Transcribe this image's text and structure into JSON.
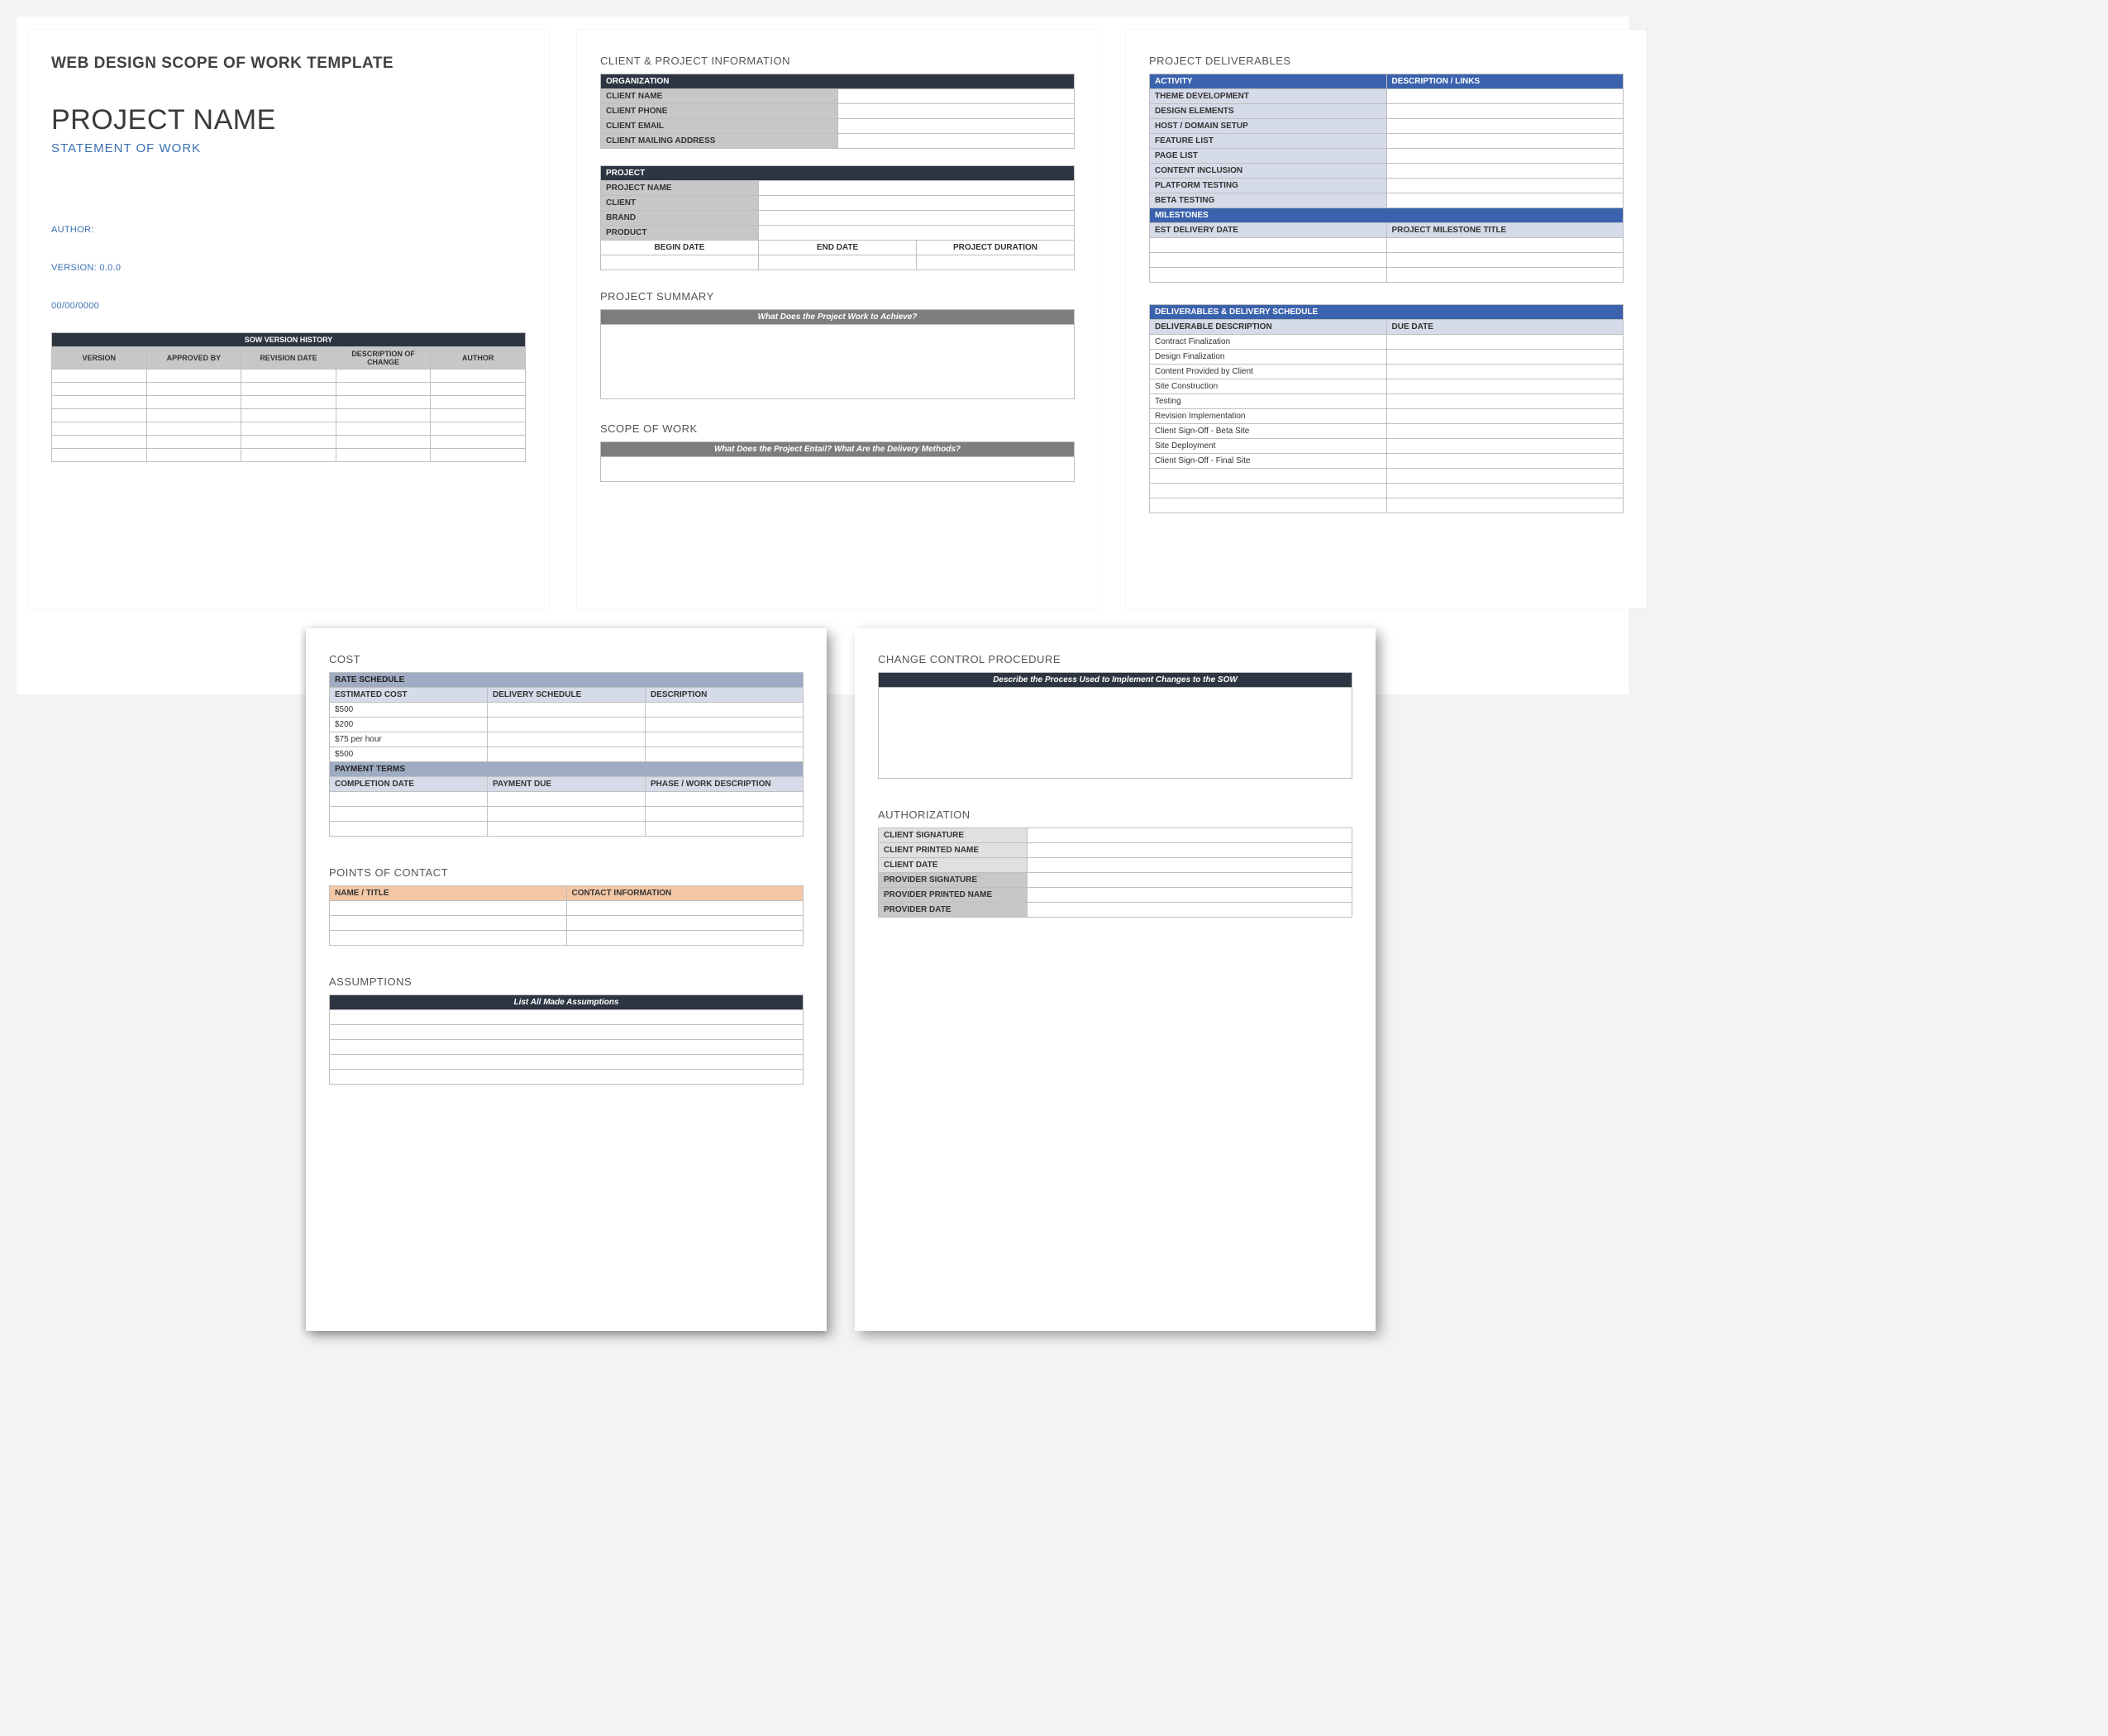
{
  "page1": {
    "templateTitle": "WEB DESIGN SCOPE OF WORK TEMPLATE",
    "projectName": "PROJECT NAME",
    "subtitle": "STATEMENT OF WORK",
    "authorLabel": "AUTHOR:",
    "versionLabel": "VERSION: 0.0.0",
    "dateLabel": "00/00/0000",
    "history": {
      "title": "SOW VERSION HISTORY",
      "columns": [
        "VERSION",
        "APPROVED BY",
        "REVISION DATE",
        "DESCRIPTION OF CHANGE",
        "AUTHOR"
      ],
      "rows": 7
    }
  },
  "page2": {
    "clientInfo": {
      "title": "CLIENT & PROJECT INFORMATION",
      "orgHeader": "ORGANIZATION",
      "rows": [
        "CLIENT NAME",
        "CLIENT  PHONE",
        "CLIENT EMAIL",
        "CLIENT MAILING ADDRESS"
      ]
    },
    "project": {
      "header": "PROJECT",
      "rows": [
        "PROJECT NAME",
        "CLIENT",
        "BRAND",
        "PRODUCT"
      ],
      "dateCols": [
        "BEGIN DATE",
        "END DATE",
        "PROJECT DURATION"
      ]
    },
    "summary": {
      "title": "PROJECT SUMMARY",
      "prompt": "What Does the Project Work to Achieve?"
    },
    "scope": {
      "title": "SCOPE OF WORK",
      "prompt": "What Does the Project Entail? What Are the Delivery Methods?"
    }
  },
  "page3": {
    "deliverables": {
      "title": "PROJECT DELIVERABLES",
      "header": [
        "ACTIVITY",
        "DESCRIPTION / LINKS"
      ],
      "rows": [
        "THEME DEVELOPMENT",
        "DESIGN ELEMENTS",
        "HOST / DOMAIN SETUP",
        "FEATURE LIST",
        "PAGE LIST",
        "CONTENT INCLUSION",
        "PLATFORM TESTING",
        "BETA TESTING"
      ]
    },
    "milestones": {
      "header": "MILESTONES",
      "cols": [
        "EST DELIVERY DATE",
        "PROJECT MILESTONE TITLE"
      ],
      "rows": 3
    },
    "schedule": {
      "header": "DELIVERABLES & DELIVERY SCHEDULE",
      "cols": [
        "DELIVERABLE DESCRIPTION",
        "DUE DATE"
      ],
      "rows": [
        "Contract Finalization",
        "Design Finalization",
        "Content Provided by Client",
        "Site Construction",
        "Testing",
        "Revision Implementation",
        "Client Sign-Off - Beta Site",
        "Site Deployment",
        "Client Sign-Off - Final Site"
      ],
      "blankRows": 3
    }
  },
  "page4": {
    "cost": {
      "title": "COST",
      "rateHeader": "RATE SCHEDULE",
      "rateCols": [
        "ESTIMATED COST",
        "DELIVERY SCHEDULE",
        "DESCRIPTION"
      ],
      "rateRows": [
        "$500",
        "$200",
        "$75 per hour",
        "$500"
      ],
      "payHeader": "PAYMENT TERMS",
      "payCols": [
        "COMPLETION DATE",
        "PAYMENT DUE",
        "PHASE / WORK DESCRIPTION"
      ],
      "payRows": 3
    },
    "contacts": {
      "title": "POINTS OF CONTACT",
      "cols": [
        "NAME / TITLE",
        "CONTACT INFORMATION"
      ],
      "rows": 3
    },
    "assumptions": {
      "title": "ASSUMPTIONS",
      "prompt": "List All Made Assumptions",
      "rows": 5
    }
  },
  "page5": {
    "change": {
      "title": "CHANGE CONTROL PROCEDURE",
      "prompt": "Describe the Process Used to Implement Changes to the SOW"
    },
    "auth": {
      "title": "AUTHORIZATION",
      "rows": [
        "CLIENT SIGNATURE",
        "CLIENT PRINTED NAME",
        "CLIENT DATE",
        "PROVIDER SIGNATURE",
        "PROVIDER PRINTED NAME",
        "PROVIDER DATE"
      ]
    }
  }
}
